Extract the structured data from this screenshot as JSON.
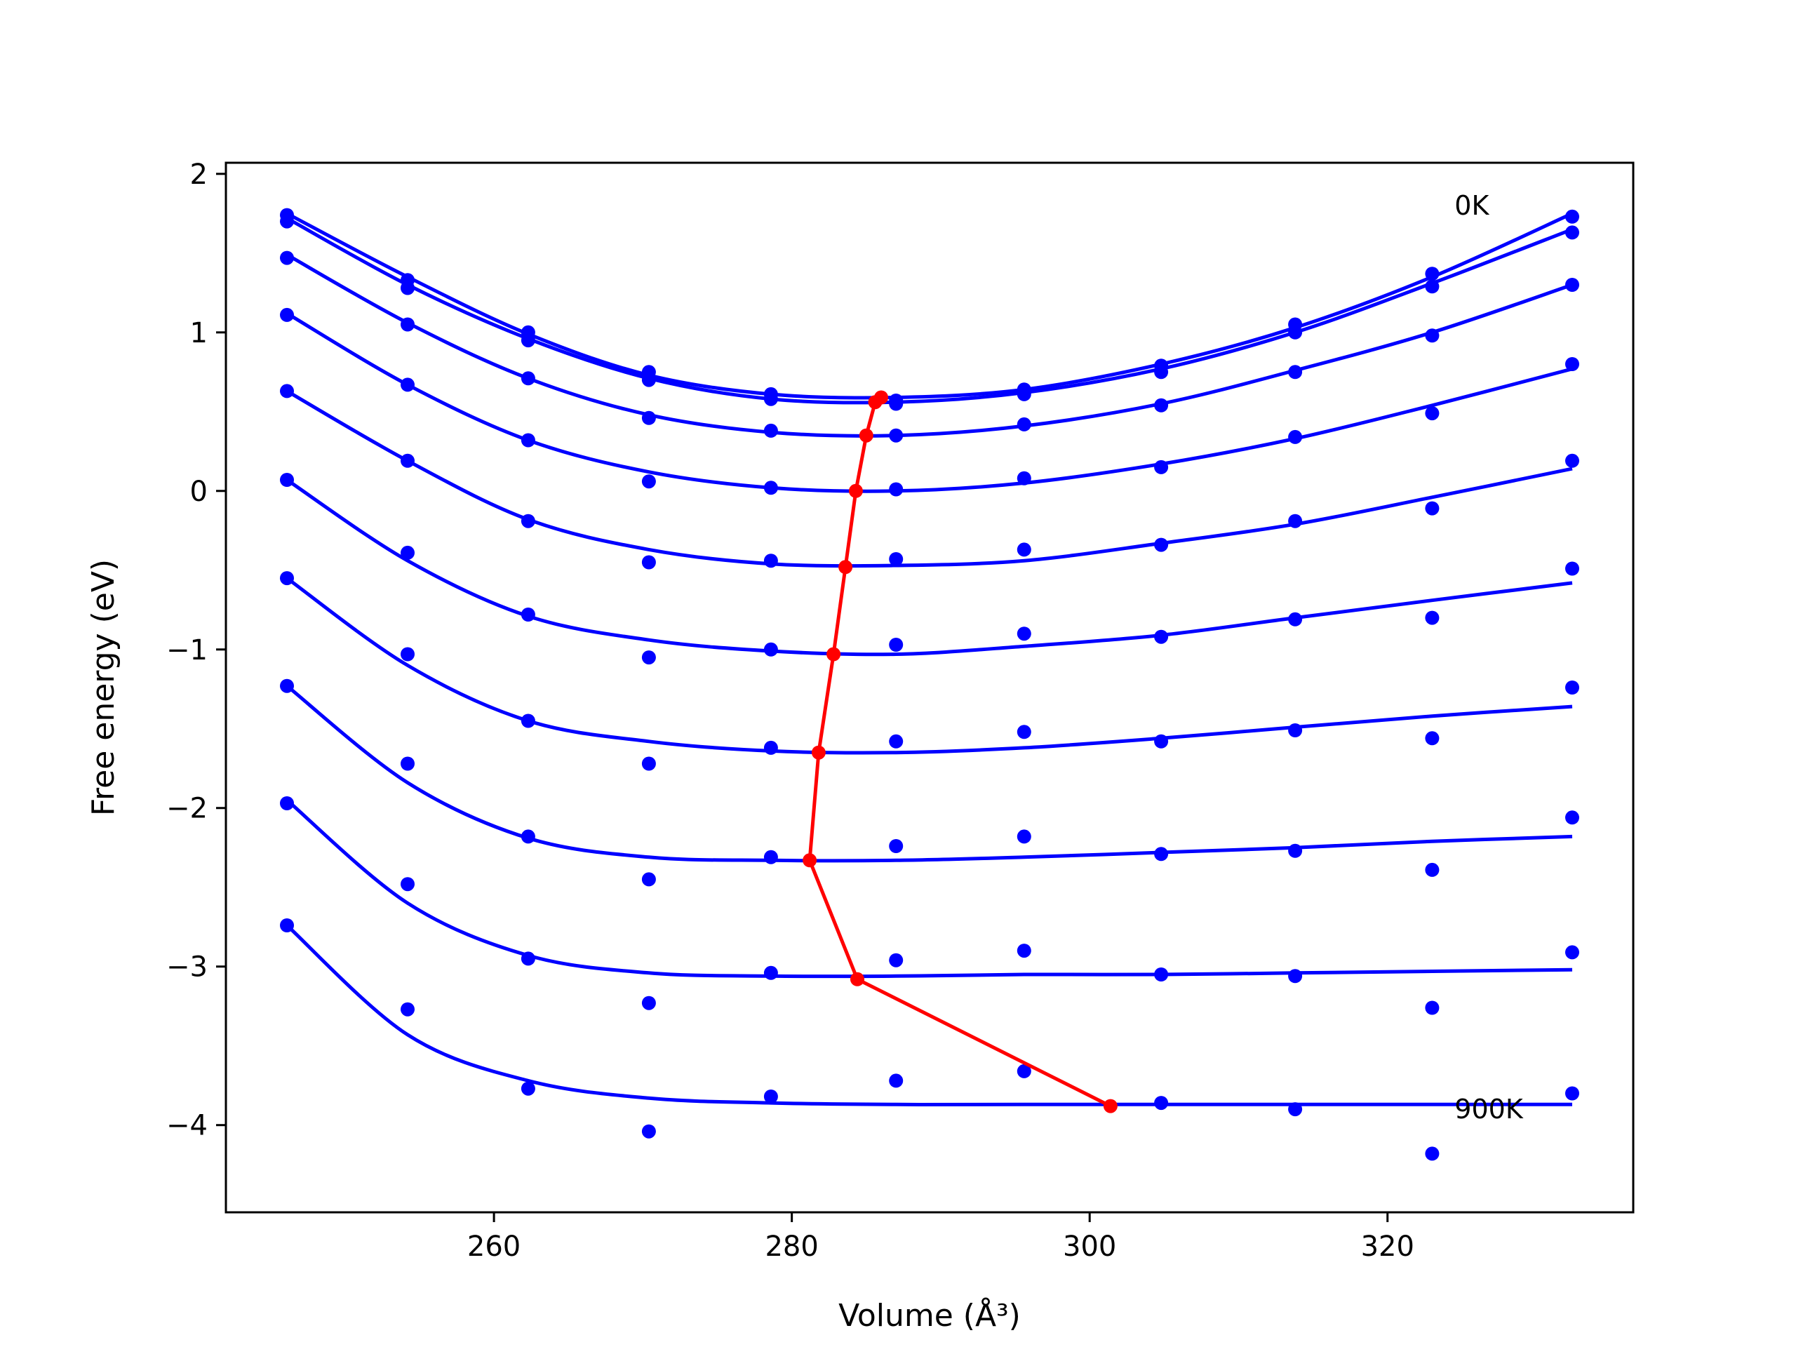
{
  "chart_data": {
    "type": "scatter",
    "title": "",
    "xlabel": "Volume (Å³)",
    "ylabel": "Free energy (eV)",
    "xlim": [
      242,
      336.5
    ],
    "ylim": [
      -4.55,
      2.07
    ],
    "xticks": [
      260,
      280,
      300,
      320
    ],
    "yticks": [
      2,
      1,
      0,
      -1,
      -2,
      -3,
      -4
    ],
    "xtick_labels": [
      "260",
      "280",
      "300",
      "320"
    ],
    "ytick_labels": [
      "2",
      "1",
      "0",
      "−1",
      "−2",
      "−3",
      "−4"
    ],
    "grid": false,
    "annotations": [
      {
        "text": "0K",
        "x": 324.5,
        "y": 1.8
      },
      {
        "text": "900K",
        "x": 324.5,
        "y": -3.9
      }
    ],
    "x": [
      246.1,
      254.2,
      262.3,
      270.4,
      278.6,
      287.0,
      295.6,
      304.8,
      313.8,
      323.0,
      332.4
    ],
    "series": [
      {
        "color": "#0000ff",
        "points_y": [
          1.74,
          1.33,
          1.0,
          0.75,
          0.61,
          0.57,
          0.64,
          0.79,
          1.05,
          1.37,
          1.73
        ],
        "fit_y": [
          1.75,
          1.35,
          0.99,
          0.73,
          0.61,
          0.59,
          0.64,
          0.8,
          1.03,
          1.35,
          1.75
        ]
      },
      {
        "color": "#0000ff",
        "points_y": [
          1.7,
          1.28,
          0.95,
          0.7,
          0.58,
          0.55,
          0.61,
          0.75,
          1.0,
          1.29,
          1.63
        ],
        "fit_y": [
          1.72,
          1.3,
          0.96,
          0.71,
          0.58,
          0.56,
          0.62,
          0.77,
          1.0,
          1.31,
          1.65
        ]
      },
      {
        "color": "#0000ff",
        "points_y": [
          1.47,
          1.05,
          0.71,
          0.46,
          0.38,
          0.35,
          0.42,
          0.54,
          0.75,
          0.98,
          1.3
        ],
        "fit_y": [
          1.49,
          1.06,
          0.71,
          0.48,
          0.37,
          0.35,
          0.41,
          0.55,
          0.76,
          1.0,
          1.3
        ]
      },
      {
        "color": "#0000ff",
        "points_y": [
          1.11,
          0.67,
          0.32,
          0.06,
          0.02,
          0.01,
          0.08,
          0.15,
          0.34,
          0.49,
          0.8
        ],
        "fit_y": [
          1.12,
          0.67,
          0.32,
          0.12,
          0.02,
          0.0,
          0.05,
          0.17,
          0.33,
          0.54,
          0.77
        ]
      },
      {
        "color": "#0000ff",
        "points_y": [
          0.63,
          0.19,
          -0.19,
          -0.45,
          -0.44,
          -0.43,
          -0.37,
          -0.34,
          -0.19,
          -0.11,
          0.19
        ],
        "fit_y": [
          0.63,
          0.19,
          -0.18,
          -0.37,
          -0.46,
          -0.47,
          -0.44,
          -0.33,
          -0.21,
          -0.04,
          0.14
        ]
      },
      {
        "color": "#0000ff",
        "points_y": [
          0.07,
          -0.39,
          -0.78,
          -1.05,
          -1.0,
          -0.97,
          -0.9,
          -0.92,
          -0.81,
          -0.8,
          -0.49
        ],
        "fit_y": [
          0.07,
          -0.44,
          -0.79,
          -0.94,
          -1.01,
          -1.03,
          -0.98,
          -0.91,
          -0.8,
          -0.69,
          -0.58
        ]
      },
      {
        "color": "#0000ff",
        "points_y": [
          -0.55,
          -1.03,
          -1.45,
          -1.72,
          -1.62,
          -1.58,
          -1.52,
          -1.58,
          -1.51,
          -1.56,
          -1.24
        ],
        "fit_y": [
          -0.55,
          -1.1,
          -1.45,
          -1.58,
          -1.64,
          -1.65,
          -1.62,
          -1.56,
          -1.49,
          -1.42,
          -1.36
        ]
      },
      {
        "color": "#0000ff",
        "points_y": [
          -1.23,
          -1.72,
          -2.18,
          -2.45,
          -2.31,
          -2.24,
          -2.18,
          -2.29,
          -2.27,
          -2.39,
          -2.06
        ],
        "fit_y": [
          -1.23,
          -1.84,
          -2.19,
          -2.31,
          -2.33,
          -2.33,
          -2.31,
          -2.28,
          -2.25,
          -2.21,
          -2.18
        ]
      },
      {
        "color": "#0000ff",
        "points_y": [
          -1.97,
          -2.48,
          -2.95,
          -3.23,
          -3.04,
          -2.96,
          -2.9,
          -3.05,
          -3.06,
          -3.26,
          -2.91
        ],
        "fit_y": [
          -1.95,
          -2.6,
          -2.93,
          -3.04,
          -3.06,
          -3.06,
          -3.05,
          -3.05,
          -3.04,
          -3.03,
          -3.02
        ]
      },
      {
        "color": "#0000ff",
        "points_y": [
          -2.74,
          -3.27,
          -3.77,
          -4.04,
          -3.82,
          -3.72,
          -3.66,
          -3.86,
          -3.9,
          -4.18,
          -3.8
        ],
        "fit_y": [
          -2.74,
          -3.43,
          -3.72,
          -3.83,
          -3.86,
          -3.87,
          -3.87,
          -3.87,
          -3.87,
          -3.87,
          -3.87
        ]
      }
    ],
    "minima": {
      "color": "#ff0000",
      "x": [
        286.0,
        285.6,
        285.0,
        284.3,
        283.6,
        282.8,
        281.8,
        281.2,
        284.4,
        301.4
      ],
      "y": [
        0.59,
        0.56,
        0.35,
        0.0,
        -0.48,
        -1.03,
        -1.65,
        -2.33,
        -3.08,
        -3.88
      ]
    }
  }
}
